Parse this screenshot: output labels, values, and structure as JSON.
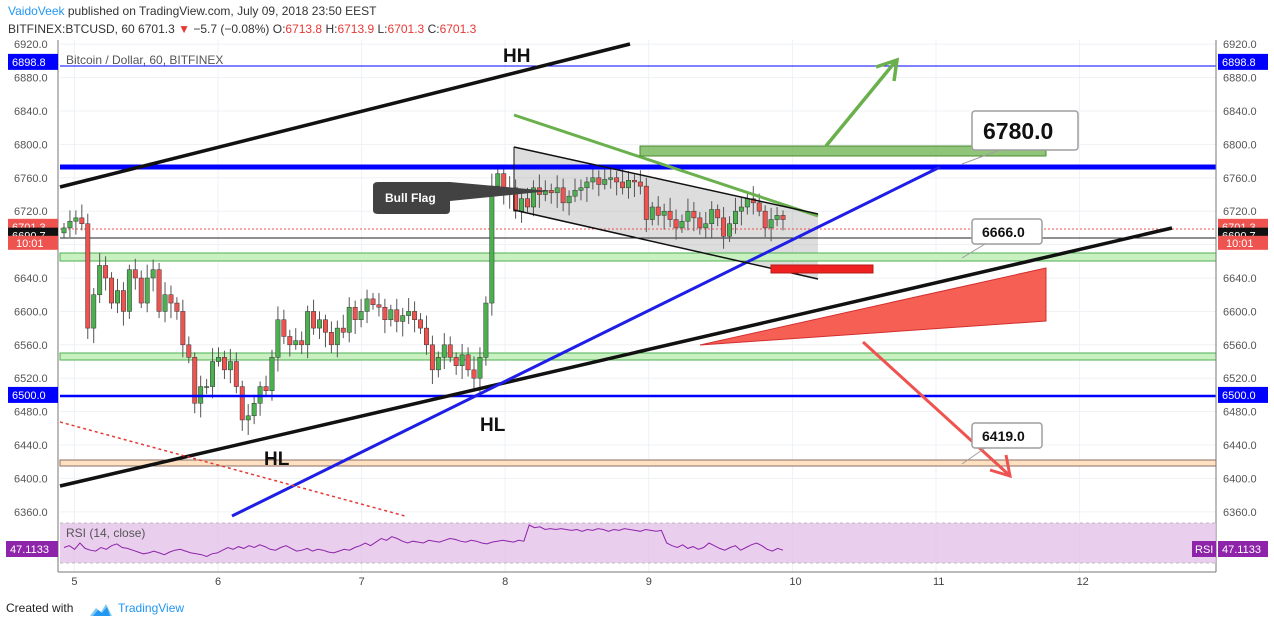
{
  "header": {
    "author": "VaidoVeek",
    "published": "published on TradingView.com, July 09, 2018 23:50 EEST",
    "symbol": "BITFINEX:BTCUSD, 60",
    "last": "6701.3",
    "change": "−5.7 (−0.08%)",
    "o_label": "O:",
    "o_val": "6713.8",
    "h_label": "H:",
    "h_val": "6713.9",
    "l_label": "L:",
    "l_val": "6701.3",
    "c_label": "C:",
    "c_val": "6701.3"
  },
  "footer": {
    "created": "Created with",
    "brand": "TradingView"
  },
  "colors": {
    "up": "#4caf50",
    "down": "#ef5350",
    "blue": "#0000ff",
    "rsi": "#8e24aa",
    "green_box": "#6ab04c"
  },
  "chart_data": {
    "type": "candlestick",
    "title": "Bitcoin / Dollar, 60, BITFINEX",
    "x_ticks": [
      "5",
      "6",
      "7",
      "8",
      "9",
      "10",
      "11",
      "12"
    ],
    "y_ticks": [
      6360,
      6400,
      6440,
      6480,
      6520,
      6560,
      6600,
      6640,
      6680,
      6720,
      6760,
      6800,
      6840,
      6880,
      6920
    ],
    "ylim": [
      6355,
      6925
    ],
    "xlim": [
      4.9,
      12.95
    ],
    "price_tags": [
      {
        "price": 6898.8,
        "label": "6898.8",
        "color": "#0000ff"
      },
      {
        "price": 6701.3,
        "label": "6701.3",
        "color": "#ef5350"
      },
      {
        "price": 6690.7,
        "label": "6690.7",
        "color": "#111111"
      },
      {
        "price": 6500.0,
        "label": "6500.0",
        "color": "#0000ff"
      }
    ],
    "countdown": "10:01",
    "closes": [
      6700,
      6708,
      6712,
      6705,
      6580,
      6620,
      6655,
      6640,
      6610,
      6625,
      6600,
      6650,
      6640,
      6610,
      6640,
      6650,
      6600,
      6620,
      6610,
      6600,
      6560,
      6545,
      6490,
      6510,
      6510,
      6540,
      6545,
      6530,
      6540,
      6510,
      6470,
      6475,
      6490,
      6510,
      6505,
      6545,
      6590,
      6570,
      6560,
      6565,
      6560,
      6600,
      6580,
      6590,
      6575,
      6560,
      6580,
      6575,
      6605,
      6590,
      6600,
      6615,
      6608,
      6605,
      6590,
      6602,
      6588,
      6595,
      6600,
      6590,
      6580,
      6560,
      6530,
      6545,
      6560,
      6545,
      6535,
      6548,
      6530,
      6520,
      6545,
      6610,
      6750,
      6765,
      6740,
      6748,
      6720,
      6735,
      6725,
      6748,
      6740,
      6745,
      6742,
      6748,
      6730,
      6738,
      6745,
      6748,
      6755,
      6760,
      6752,
      6758,
      6760,
      6755,
      6748,
      6757,
      6755,
      6750,
      6710,
      6725,
      6715,
      6720,
      6710,
      6700,
      6708,
      6720,
      6712,
      6700,
      6705,
      6722,
      6712,
      6690,
      6705,
      6720,
      6725,
      6735,
      6730,
      6720,
      6700,
      6710,
      6715,
      6710
    ],
    "rsi": {
      "label": "RSI (14, close)",
      "value": "47.1133",
      "tag": "RSI",
      "values": [
        50,
        52,
        48,
        55,
        49,
        47,
        46,
        50,
        48,
        52,
        54,
        50,
        49,
        47,
        45,
        43,
        44,
        46,
        44,
        42,
        45,
        47,
        48,
        46,
        44,
        43,
        42,
        40,
        43,
        44,
        47,
        50,
        48,
        51,
        49,
        52,
        50,
        53,
        51,
        48,
        47,
        50,
        52,
        49,
        46,
        47,
        49,
        46,
        48,
        47,
        45,
        44,
        46,
        48,
        47,
        50,
        52,
        55,
        52,
        56,
        60,
        58,
        62,
        60,
        57,
        55,
        57,
        56,
        55,
        58,
        57,
        56,
        58,
        60,
        59,
        57,
        56,
        58,
        57,
        55,
        54,
        56,
        57,
        58,
        57,
        56,
        58,
        57,
        75,
        72,
        73,
        70,
        71,
        70,
        71,
        70,
        69,
        70,
        68,
        70,
        69,
        71,
        70,
        68,
        70,
        69,
        71,
        70,
        69,
        68,
        70,
        69,
        68,
        69,
        55,
        52,
        50,
        53,
        49,
        51,
        48,
        50,
        55,
        52,
        49,
        47,
        50,
        52,
        47,
        50,
        53,
        55,
        52,
        48,
        46,
        49,
        47
      ]
    }
  },
  "annotations": {
    "hh": "HH",
    "hl1": "HL",
    "hl2": "HL",
    "bull_flag": "Bull Flag",
    "target_6780": "6780.0",
    "level_6666": "6666.0",
    "level_6419": "6419.0"
  }
}
